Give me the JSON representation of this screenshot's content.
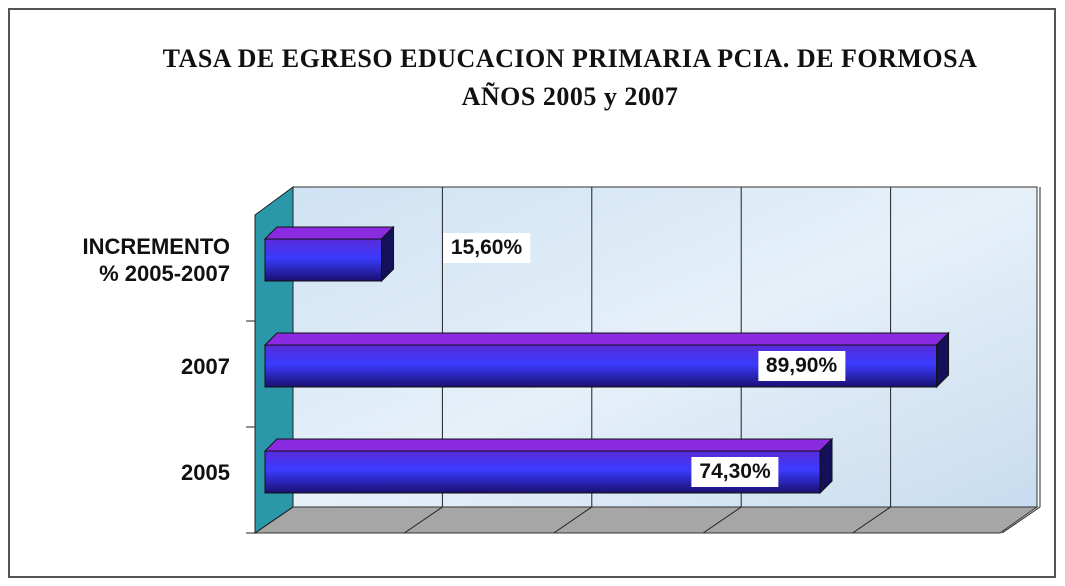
{
  "chart_data": {
    "type": "bar",
    "orientation": "horizontal",
    "title": "TASA DE EGRESO EDUCACION PRIMARIA PCIA. DE FORMOSA AÑOS 2005 y 2007",
    "categories": [
      "INCREMENTO\n% 2005-2007",
      "2007",
      "2005"
    ],
    "values": [
      15.6,
      89.9,
      74.3
    ],
    "value_labels": [
      "15,60%",
      "89,90%",
      "74,30%"
    ],
    "color": "#2a2af0",
    "xlim": [
      0,
      100
    ],
    "xticks": [
      0,
      20,
      40,
      60,
      80,
      100
    ],
    "grid": true
  }
}
